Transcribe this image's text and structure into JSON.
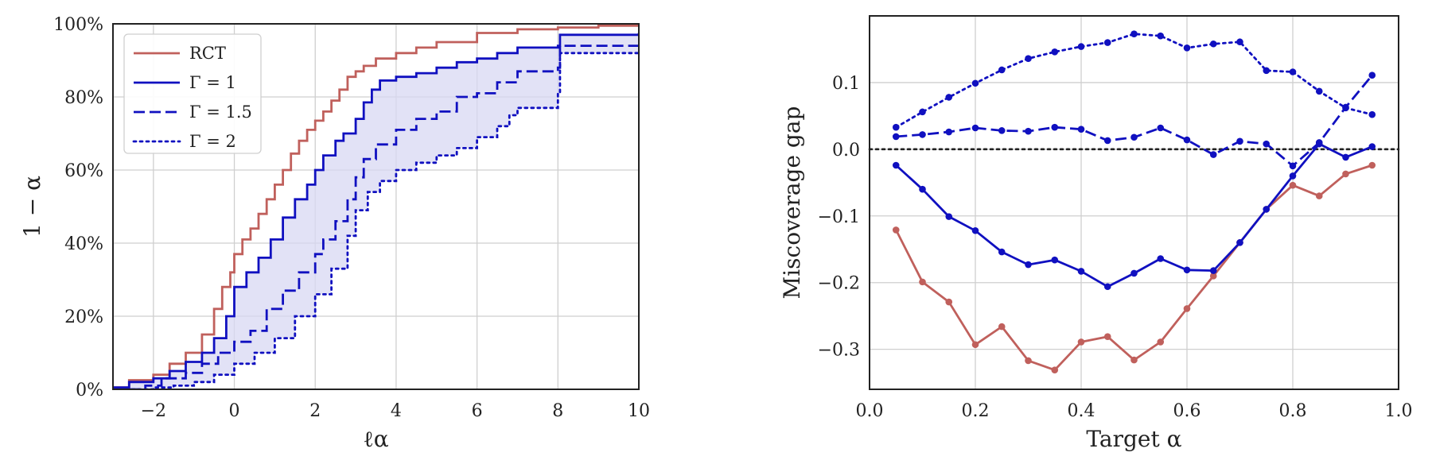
{
  "chart_data": [
    {
      "type": "line",
      "title": "",
      "xlabel": "ℓα",
      "ylabel": "1 − α",
      "xlim": [
        -3,
        10
      ],
      "ylim": [
        0,
        1
      ],
      "xticks": [
        -2,
        0,
        2,
        4,
        6,
        8,
        10
      ],
      "xtick_labels": [
        "−2",
        "0",
        "2",
        "4",
        "6",
        "8",
        "10"
      ],
      "yticks": [
        0,
        0.2,
        0.4,
        0.6,
        0.8,
        1.0
      ],
      "ytick_labels": [
        "0%",
        "20%",
        "40%",
        "60%",
        "80%",
        "100%"
      ],
      "grid": true,
      "legend_position": "upper-left",
      "shaded_band": {
        "between": [
          "Γ = 1",
          "Γ = 2"
        ],
        "color": "#d8d8f3"
      },
      "series": [
        {
          "name": "RCT",
          "color": "#c0605c",
          "style": "solid",
          "x": [
            -3,
            -2.6,
            -2,
            -1.6,
            -1.2,
            -0.8,
            -0.5,
            -0.3,
            -0.1,
            0,
            0.2,
            0.4,
            0.6,
            0.8,
            1.0,
            1.2,
            1.4,
            1.6,
            1.8,
            2.0,
            2.2,
            2.4,
            2.6,
            2.8,
            3.0,
            3.2,
            3.5,
            4,
            4.5,
            5,
            6,
            7,
            8,
            9,
            10
          ],
          "y": [
            0.005,
            0.025,
            0.04,
            0.07,
            0.1,
            0.15,
            0.22,
            0.28,
            0.32,
            0.37,
            0.41,
            0.44,
            0.48,
            0.52,
            0.56,
            0.6,
            0.645,
            0.68,
            0.71,
            0.735,
            0.76,
            0.79,
            0.82,
            0.855,
            0.87,
            0.885,
            0.905,
            0.92,
            0.935,
            0.95,
            0.975,
            0.985,
            0.99,
            0.995,
            1.0
          ]
        },
        {
          "name": "Γ = 1",
          "color": "#1010c0",
          "style": "solid",
          "x": [
            -3,
            -2.6,
            -2,
            -1.6,
            -1.2,
            -0.8,
            -0.5,
            -0.2,
            0,
            0.3,
            0.6,
            0.9,
            1.2,
            1.5,
            1.8,
            2.0,
            2.2,
            2.5,
            2.7,
            3.0,
            3.2,
            3.4,
            3.6,
            4.0,
            4.5,
            5,
            5.5,
            6,
            6.5,
            7,
            8,
            8.05,
            10
          ],
          "y": [
            0.005,
            0.02,
            0.03,
            0.05,
            0.075,
            0.1,
            0.14,
            0.2,
            0.28,
            0.32,
            0.36,
            0.41,
            0.47,
            0.52,
            0.56,
            0.6,
            0.64,
            0.68,
            0.7,
            0.74,
            0.785,
            0.82,
            0.845,
            0.855,
            0.865,
            0.88,
            0.895,
            0.905,
            0.92,
            0.935,
            0.94,
            0.97,
            0.975
          ]
        },
        {
          "name": "Γ = 1.5",
          "color": "#1010c0",
          "style": "dashed",
          "x": [
            -3,
            -2.2,
            -1.8,
            -1.2,
            -0.8,
            -0.4,
            0,
            0.4,
            0.8,
            1.2,
            1.6,
            2.0,
            2.2,
            2.5,
            2.8,
            3.0,
            3.2,
            3.5,
            4.0,
            4.5,
            5.0,
            5.5,
            6.0,
            6.5,
            7.0,
            8.0,
            8.05,
            10
          ],
          "y": [
            0,
            0.01,
            0.03,
            0.045,
            0.07,
            0.1,
            0.13,
            0.16,
            0.22,
            0.27,
            0.32,
            0.37,
            0.41,
            0.46,
            0.52,
            0.58,
            0.63,
            0.67,
            0.71,
            0.74,
            0.76,
            0.8,
            0.81,
            0.84,
            0.87,
            0.88,
            0.94,
            0.95
          ]
        },
        {
          "name": "Γ = 2",
          "color": "#1010c0",
          "style": "dotted",
          "x": [
            -3,
            -2,
            -1.5,
            -1.0,
            -0.5,
            0,
            0.5,
            1.0,
            1.5,
            2.0,
            2.4,
            2.8,
            3.0,
            3.3,
            3.6,
            4.0,
            4.5,
            5.0,
            5.5,
            6.0,
            6.5,
            6.8,
            7.0,
            8.0,
            8.05,
            10
          ],
          "y": [
            0,
            0.005,
            0.01,
            0.02,
            0.04,
            0.07,
            0.1,
            0.14,
            0.2,
            0.26,
            0.33,
            0.42,
            0.49,
            0.54,
            0.57,
            0.6,
            0.62,
            0.64,
            0.66,
            0.69,
            0.72,
            0.75,
            0.77,
            0.81,
            0.92,
            0.925
          ]
        }
      ]
    },
    {
      "type": "line",
      "title": "",
      "xlabel": "Target α",
      "ylabel": "Miscoverage gap",
      "xlim": [
        0,
        1
      ],
      "ylim": [
        -0.36,
        0.2
      ],
      "xticks": [
        0,
        0.2,
        0.4,
        0.6,
        0.8,
        1.0
      ],
      "xtick_labels": [
        "0.0",
        "0.2",
        "0.4",
        "0.6",
        "0.8",
        "1.0"
      ],
      "yticks": [
        -0.3,
        -0.2,
        -0.1,
        0.0,
        0.1
      ],
      "ytick_labels": [
        "−0.3",
        "−0.2",
        "−0.1",
        "0.0",
        "0.1"
      ],
      "grid": true,
      "reference_line": {
        "y": 0.0,
        "style": "dotted",
        "color": "#222222"
      },
      "x": [
        0.05,
        0.1,
        0.15,
        0.2,
        0.25,
        0.3,
        0.35,
        0.4,
        0.45,
        0.5,
        0.55,
        0.6,
        0.65,
        0.7,
        0.75,
        0.8,
        0.85,
        0.9,
        0.95
      ],
      "series": [
        {
          "name": "RCT",
          "color": "#c0605c",
          "style": "solid",
          "values": [
            -0.121,
            -0.199,
            -0.229,
            -0.293,
            -0.266,
            -0.317,
            -0.331,
            -0.289,
            -0.281,
            -0.316,
            -0.289,
            -0.239,
            -0.19,
            -0.14,
            -0.09,
            -0.054,
            -0.07,
            -0.037,
            -0.024
          ]
        },
        {
          "name": "Γ = 1",
          "color": "#1010c0",
          "style": "solid",
          "values": [
            -0.024,
            -0.06,
            -0.101,
            -0.122,
            -0.154,
            -0.173,
            -0.166,
            -0.183,
            -0.206,
            -0.186,
            -0.164,
            -0.181,
            -0.182,
            -0.14,
            -0.09,
            -0.04,
            0.008,
            -0.012,
            0.004
          ]
        },
        {
          "name": "Γ = 1.5",
          "color": "#1010c0",
          "style": "dashed",
          "values": [
            0.019,
            0.022,
            0.026,
            0.032,
            0.028,
            0.027,
            0.033,
            0.03,
            0.013,
            0.018,
            0.032,
            0.014,
            -0.008,
            0.012,
            0.008,
            -0.025,
            0.01,
            0.063,
            0.111
          ]
        },
        {
          "name": "Γ = 2",
          "color": "#1010c0",
          "style": "dotted",
          "values": [
            0.033,
            0.056,
            0.078,
            0.099,
            0.119,
            0.136,
            0.146,
            0.154,
            0.16,
            0.173,
            0.17,
            0.152,
            0.158,
            0.161,
            0.118,
            0.116,
            0.087,
            0.062,
            0.052
          ]
        }
      ]
    }
  ]
}
